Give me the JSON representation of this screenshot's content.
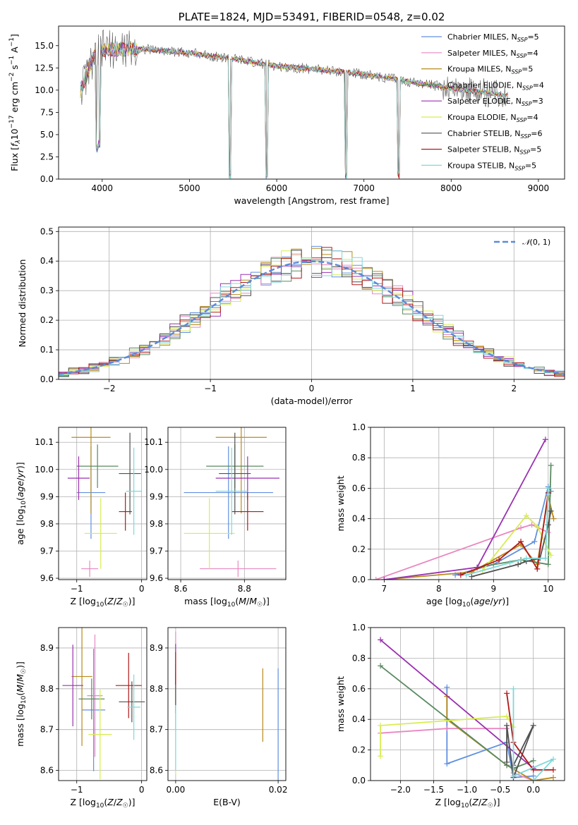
{
  "chart_data": [
    {
      "type": "line",
      "id": "spectrum",
      "title": "PLATE=1824, MJD=53491, FIBERID=0548, z=0.02",
      "xlabel": "wavelength [Angstrom, rest frame]",
      "ylabel": "Flux [f_λ 10^-17 erg cm^-2 s^-1 A^-1]",
      "xlim": [
        3500,
        9300
      ],
      "ylim": [
        0,
        17.2
      ],
      "xticks": [
        4000,
        5000,
        6000,
        7000,
        8000,
        9000
      ],
      "yticks": [
        0.0,
        2.5,
        5.0,
        7.5,
        10.0,
        12.5,
        15.0
      ],
      "grid": false,
      "legend_position": "upper right",
      "data_wavelength_range": [
        3750,
        8650
      ],
      "continuum": [
        [
          3750,
          10.0
        ],
        [
          3900,
          13.6
        ],
        [
          4000,
          14.6
        ],
        [
          4500,
          14.6
        ],
        [
          5000,
          14.2
        ],
        [
          5500,
          13.5
        ],
        [
          6000,
          12.7
        ],
        [
          6500,
          12.3
        ],
        [
          7000,
          11.8
        ],
        [
          7500,
          11.0
        ],
        [
          8000,
          10.2
        ],
        [
          8500,
          9.6
        ],
        [
          8650,
          9.3
        ]
      ],
      "absorption_features": [
        [
          3934,
          3.0
        ],
        [
          3968,
          3.5
        ],
        [
          5460,
          0.0
        ],
        [
          5890,
          0.0
        ],
        [
          6790,
          0.0
        ],
        [
          7400,
          0.0
        ]
      ],
      "series": [
        {
          "name": "Chabrier MILES, N_SSP=5",
          "color": "#6090e0"
        },
        {
          "name": "Salpeter MILES, N_SSP=4",
          "color": "#e888c0"
        },
        {
          "name": "Kroupa MILES, N_SSP=5",
          "color": "#b88a1a"
        },
        {
          "name": "Chabrier ELODIE, N_SSP=4",
          "color": "#5a8a60"
        },
        {
          "name": "Salpeter ELODIE, N_SSP=3",
          "color": "#9b30b0"
        },
        {
          "name": "Kroupa ELODIE, N_SSP=4",
          "color": "#d8ec50"
        },
        {
          "name": "Chabrier STELIB, N_SSP=6",
          "color": "#505050"
        },
        {
          "name": "Salpeter STELIB, N_SSP=5",
          "color": "#b01818"
        },
        {
          "name": "Kroupa STELIB, N_SSP=5",
          "color": "#80d8d8"
        }
      ]
    },
    {
      "type": "histogram",
      "id": "residuals",
      "xlabel": "(data-model)/error",
      "ylabel": "Normed distribution",
      "xlim": [
        -2.5,
        2.5
      ],
      "ylim": [
        0,
        0.515
      ],
      "xticks": [
        -2,
        -1,
        0,
        1,
        2
      ],
      "yticks": [
        0.0,
        0.1,
        0.2,
        0.3,
        0.4,
        0.5
      ],
      "grid": true,
      "bin_width": 0.1,
      "reference_curve": {
        "name": "N(0, 1)",
        "mean": 0,
        "sigma": 1,
        "color": "#5a8ad8",
        "style": "dashed"
      },
      "legend_position": "upper right"
    },
    {
      "type": "scatter",
      "id": "age_vs_Z",
      "xlabel": "Z [log10(Z/Z☉)]",
      "ylabel": "age [log10(age/yr)]",
      "xlim": [
        -1.28,
        0.08
      ],
      "ylim": [
        9.595,
        10.155
      ],
      "xticks": [
        -1,
        0
      ],
      "yticks": [
        9.6,
        9.7,
        9.8,
        9.9,
        10.0,
        10.1
      ],
      "grid": true,
      "points": [
        {
          "x": -0.78,
          "y": 9.915,
          "xerr": 0.22,
          "yerr": 0.17,
          "series": 0
        },
        {
          "x": -0.8,
          "y": 9.635,
          "xerr": 0.13,
          "yerr": 0.03,
          "series": 1
        },
        {
          "x": -0.78,
          "y": 10.118,
          "xerr": 0.3,
          "yerr": 0.28,
          "series": 2
        },
        {
          "x": -0.68,
          "y": 10.012,
          "xerr": 0.32,
          "yerr": 0.08,
          "series": 3
        },
        {
          "x": -0.97,
          "y": 9.968,
          "xerr": 0.17,
          "yerr": 0.08,
          "series": 4
        },
        {
          "x": -0.63,
          "y": 9.765,
          "xerr": 0.25,
          "yerr": 0.13,
          "series": 5
        },
        {
          "x": -0.18,
          "y": 9.985,
          "xerr": 0.17,
          "yerr": 0.15,
          "series": 6
        },
        {
          "x": -0.25,
          "y": 9.845,
          "xerr": 0.1,
          "yerr": 0.07,
          "series": 7
        },
        {
          "x": -0.12,
          "y": 9.92,
          "xerr": 0.12,
          "yerr": 0.16,
          "series": 8
        }
      ]
    },
    {
      "type": "scatter",
      "id": "age_vs_mass",
      "xlabel": "mass [log10(M/M☉)]",
      "ylabel": "",
      "xlim": [
        8.56,
        8.93
      ],
      "ylim": [
        9.595,
        10.155
      ],
      "xticks": [
        8.6,
        8.8
      ],
      "yticks": [
        9.6,
        9.7,
        9.8,
        9.9,
        10.0,
        10.1
      ],
      "grid": true,
      "points": [
        {
          "x": 8.75,
          "y": 9.915,
          "xerr": 0.14,
          "yerr": 0.17,
          "series": 0
        },
        {
          "x": 8.78,
          "y": 9.635,
          "xerr": 0.12,
          "yerr": 0.03,
          "series": 1
        },
        {
          "x": 8.79,
          "y": 10.118,
          "xerr": 0.08,
          "yerr": 0.28,
          "series": 2
        },
        {
          "x": 8.77,
          "y": 10.012,
          "xerr": 0.09,
          "yerr": 0.08,
          "series": 3
        },
        {
          "x": 8.81,
          "y": 9.968,
          "xerr": 0.1,
          "yerr": 0.08,
          "series": 4
        },
        {
          "x": 8.69,
          "y": 9.765,
          "xerr": 0.08,
          "yerr": 0.13,
          "series": 5
        },
        {
          "x": 8.77,
          "y": 9.985,
          "xerr": 0.05,
          "yerr": 0.15,
          "series": 6
        },
        {
          "x": 8.81,
          "y": 9.845,
          "xerr": 0.05,
          "yerr": 0.07,
          "series": 7
        },
        {
          "x": 8.76,
          "y": 9.92,
          "xerr": 0.05,
          "yerr": 0.16,
          "series": 8
        }
      ]
    },
    {
      "type": "line",
      "id": "weight_vs_age",
      "xlabel": "age [log10(age/yr)]",
      "ylabel": "mass weight",
      "xlim": [
        6.75,
        10.3
      ],
      "ylim": [
        0,
        1.0
      ],
      "xticks": [
        7,
        8,
        9,
        10
      ],
      "yticks": [
        0.0,
        0.2,
        0.4,
        0.6,
        0.8,
        1.0
      ],
      "grid": true,
      "series": [
        {
          "series": 0,
          "points": [
            [
              8.3,
              0.03
            ],
            [
              9.0,
              0.1
            ],
            [
              9.75,
              0.25
            ],
            [
              10.0,
              0.61
            ],
            [
              10.05,
              0.58
            ]
          ]
        },
        {
          "series": 1,
          "points": [
            [
              6.85,
              0.0
            ],
            [
              9.5,
              0.34
            ],
            [
              9.7,
              0.36
            ],
            [
              10.0,
              0.31
            ]
          ]
        },
        {
          "series": 2,
          "points": [
            [
              7.0,
              0.0
            ],
            [
              8.6,
              0.05
            ],
            [
              9.5,
              0.23
            ],
            [
              9.8,
              0.1
            ],
            [
              10.0,
              0.55
            ],
            [
              10.1,
              0.4
            ]
          ]
        },
        {
          "series": 3,
          "points": [
            [
              8.7,
              0.08
            ],
            [
              9.5,
              0.13
            ],
            [
              10.0,
              0.1
            ],
            [
              10.05,
              0.75
            ]
          ]
        },
        {
          "series": 4,
          "points": [
            [
              7.0,
              0.0
            ],
            [
              8.7,
              0.08
            ],
            [
              9.95,
              0.92
            ]
          ]
        },
        {
          "series": 5,
          "points": [
            [
              8.8,
              0.06
            ],
            [
              9.6,
              0.42
            ],
            [
              9.8,
              0.35
            ],
            [
              10.05,
              0.16
            ]
          ]
        },
        {
          "series": 6,
          "points": [
            [
              8.6,
              0.02
            ],
            [
              9.45,
              0.1
            ],
            [
              9.6,
              0.12
            ],
            [
              9.85,
              0.14
            ],
            [
              10.0,
              0.36
            ],
            [
              10.05,
              0.45
            ]
          ]
        },
        {
          "series": 7,
          "points": [
            [
              8.4,
              0.03
            ],
            [
              9.1,
              0.13
            ],
            [
              9.5,
              0.25
            ],
            [
              9.8,
              0.07
            ],
            [
              10.0,
              0.57
            ]
          ]
        },
        {
          "series": 8,
          "points": [
            [
              8.5,
              0.03
            ],
            [
              9.3,
              0.11
            ],
            [
              9.6,
              0.14
            ],
            [
              9.95,
              0.14
            ],
            [
              10.0,
              0.6
            ]
          ]
        }
      ]
    },
    {
      "type": "scatter",
      "id": "mass_vs_Z",
      "xlabel": "Z [log10(Z/Z☉)]",
      "ylabel": "mass [log10(M/M☉)]",
      "xlim": [
        -1.28,
        0.08
      ],
      "ylim": [
        8.575,
        8.95
      ],
      "xticks": [
        -1,
        0
      ],
      "yticks": [
        8.6,
        8.7,
        8.8,
        8.9
      ],
      "grid": true,
      "points": [
        {
          "x": -0.74,
          "y": 8.748,
          "xerr": 0.18,
          "yerr": 0.15,
          "series": 0
        },
        {
          "x": -0.72,
          "y": 8.783,
          "xerr": 0.12,
          "yerr": 0.15,
          "series": 1
        },
        {
          "x": -0.92,
          "y": 8.83,
          "xerr": 0.16,
          "yerr": 0.17,
          "series": 2
        },
        {
          "x": -0.77,
          "y": 8.775,
          "xerr": 0.2,
          "yerr": 0.05,
          "series": 3
        },
        {
          "x": -1.06,
          "y": 8.808,
          "xerr": 0.16,
          "yerr": 0.1,
          "series": 4
        },
        {
          "x": -0.64,
          "y": 8.688,
          "xerr": 0.18,
          "yerr": 0.11,
          "series": 5
        },
        {
          "x": -0.15,
          "y": 8.768,
          "xerr": 0.2,
          "yerr": 0.05,
          "series": 6
        },
        {
          "x": -0.2,
          "y": 8.808,
          "xerr": 0.2,
          "yerr": 0.08,
          "series": 7
        },
        {
          "x": -0.12,
          "y": 8.755,
          "xerr": 0.1,
          "yerr": 0.08,
          "series": 8
        }
      ]
    },
    {
      "type": "scatter",
      "id": "mass_vs_ebv",
      "xlabel": "E(B-V)",
      "ylabel": "",
      "xlim": [
        -0.0015,
        0.0215
      ],
      "ylim": [
        8.575,
        8.95
      ],
      "xticks": [
        0.0,
        0.02
      ],
      "yticks": [
        8.6,
        8.7,
        8.8,
        8.9
      ],
      "grid": true,
      "points": [
        {
          "x": 0.02,
          "y": 8.7,
          "yerr": 0.15,
          "series": 0
        },
        {
          "x": 0.0,
          "y": 8.82,
          "yerr": 0.12,
          "series": 1
        },
        {
          "x": 0.017,
          "y": 8.76,
          "yerr": 0.09,
          "series": 2
        },
        {
          "x": 0.0,
          "y": 8.81,
          "yerr": 0.05,
          "series": 3
        },
        {
          "x": 0.0,
          "y": 8.86,
          "yerr": 0.05,
          "series": 4
        },
        {
          "x": 0.0,
          "y": 8.7,
          "yerr": 0.11,
          "series": 5
        },
        {
          "x": 0.0,
          "y": 8.79,
          "yerr": 0.05,
          "series": 6
        },
        {
          "x": 0.0,
          "y": 8.85,
          "yerr": 0.04,
          "series": 7
        },
        {
          "x": 0.0,
          "y": 8.68,
          "yerr": 0.08,
          "series": 8
        }
      ]
    },
    {
      "type": "line",
      "id": "weight_vs_Z",
      "xlabel": "Z [log10(Z/Z☉)]",
      "ylabel": "mass weight",
      "xlim": [
        -2.45,
        0.47
      ],
      "ylim": [
        0,
        1.0
      ],
      "xticks": [
        -2.0,
        -1.5,
        -1.0,
        -0.5,
        0.0
      ],
      "yticks": [
        0.0,
        0.2,
        0.4,
        0.6,
        0.8,
        1.0
      ],
      "grid": true,
      "series": [
        {
          "series": 0,
          "points": [
            [
              -1.3,
              0.61
            ],
            [
              -1.3,
              0.11
            ],
            [
              -0.4,
              0.25
            ],
            [
              -0.3,
              0.02
            ],
            [
              0.0,
              0.03
            ]
          ]
        },
        {
          "series": 1,
          "points": [
            [
              -2.3,
              0.31
            ],
            [
              -1.3,
              0.34
            ],
            [
              -0.4,
              0.34
            ],
            [
              -0.3,
              0.05
            ],
            [
              0.0,
              0.0
            ]
          ]
        },
        {
          "series": 2,
          "points": [
            [
              -1.3,
              0.55
            ],
            [
              -1.3,
              0.4
            ],
            [
              -0.4,
              0.1
            ],
            [
              0.0,
              0.0
            ],
            [
              0.3,
              0.02
            ]
          ]
        },
        {
          "series": 3,
          "points": [
            [
              -2.3,
              0.75
            ],
            [
              -0.4,
              0.1
            ],
            [
              -0.3,
              0.08
            ],
            [
              0.0,
              0.13
            ]
          ]
        },
        {
          "series": 4,
          "points": [
            [
              -2.3,
              0.92
            ],
            [
              0.0,
              0.08
            ]
          ]
        },
        {
          "series": 5,
          "points": [
            [
              -2.3,
              0.16
            ],
            [
              -2.3,
              0.36
            ],
            [
              -0.4,
              0.42
            ],
            [
              -0.3,
              0.35
            ]
          ]
        },
        {
          "series": 6,
          "points": [
            [
              -0.4,
              0.12
            ],
            [
              -0.4,
              0.36
            ],
            [
              -0.3,
              0.02
            ],
            [
              0.0,
              0.36
            ],
            [
              -0.3,
              0.1
            ]
          ]
        },
        {
          "series": 7,
          "points": [
            [
              -0.4,
              0.57
            ],
            [
              -0.3,
              0.25
            ],
            [
              0.0,
              0.07
            ],
            [
              0.3,
              0.07
            ]
          ]
        },
        {
          "series": 8,
          "points": [
            [
              -0.3,
              0.6
            ],
            [
              -0.3,
              0.03
            ],
            [
              0.3,
              0.14
            ],
            [
              0.0,
              0.0
            ]
          ]
        }
      ]
    }
  ]
}
